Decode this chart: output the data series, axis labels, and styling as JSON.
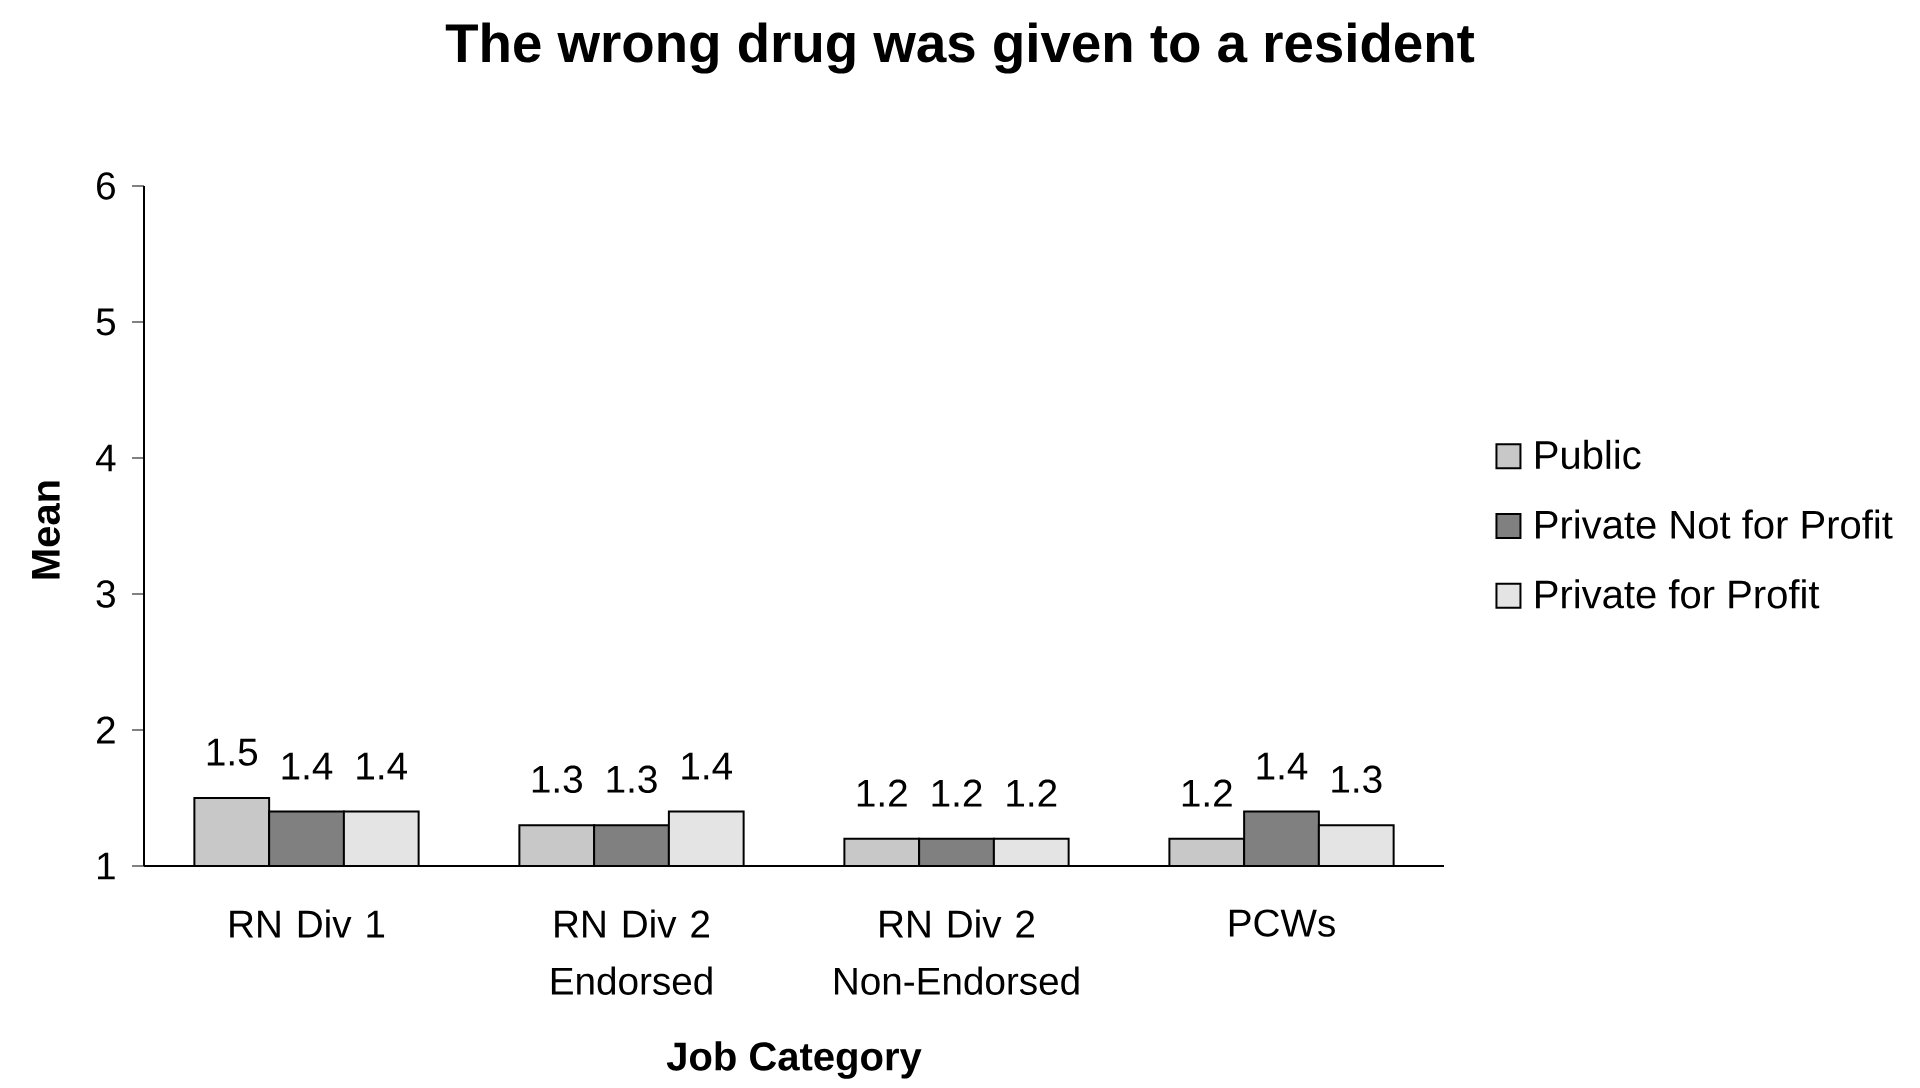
{
  "chart_data": {
    "type": "bar",
    "title": "The wrong drug was given to a resident",
    "xlabel": "Job Category",
    "ylabel": "Mean",
    "categories": [
      "RN Div 1",
      "RN Div 2 Endorsed",
      "RN Div 2 Non-Endorsed",
      "PCWs"
    ],
    "series": [
      {
        "name": "Public",
        "color": "#c8c8c8",
        "values": [
          1.5,
          1.3,
          1.2,
          1.2
        ]
      },
      {
        "name": "Private Not for Profit",
        "color": "#808080",
        "values": [
          1.4,
          1.3,
          1.2,
          1.4
        ]
      },
      {
        "name": "Private for Profit",
        "color": "#e4e4e4",
        "values": [
          1.4,
          1.4,
          1.2,
          1.3
        ]
      }
    ],
    "ylim": [
      1,
      6
    ],
    "yticks": [
      1,
      2,
      3,
      4,
      5,
      6
    ],
    "legend": "right",
    "data_labels": true
  }
}
